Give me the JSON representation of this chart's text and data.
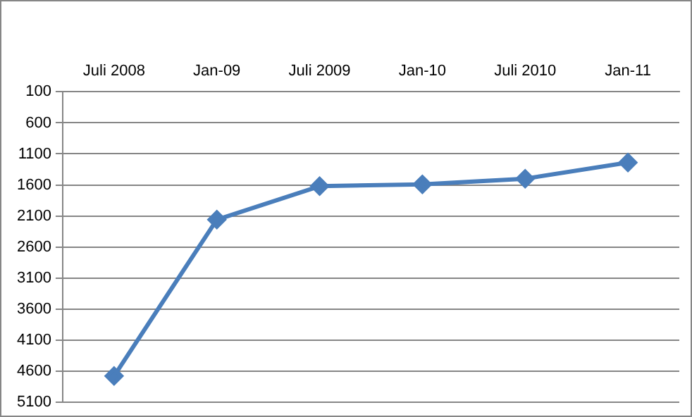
{
  "chart_data": {
    "type": "line",
    "categories": [
      "Juli 2008",
      "Jan-09",
      "Juli 2009",
      "Jan-10",
      "Juli 2010",
      "Jan-11"
    ],
    "series": [
      {
        "color": "#4a7ebb",
        "values": [
          4680,
          2160,
          1620,
          1590,
          1500,
          1240
        ]
      }
    ],
    "ylim": [
      5100,
      100
    ],
    "yticks": [
      100,
      600,
      1100,
      1600,
      2100,
      2600,
      3100,
      3600,
      4100,
      4600,
      5100
    ],
    "grid": "y",
    "legend": false,
    "marker": "diamond",
    "line_style": "solid"
  }
}
